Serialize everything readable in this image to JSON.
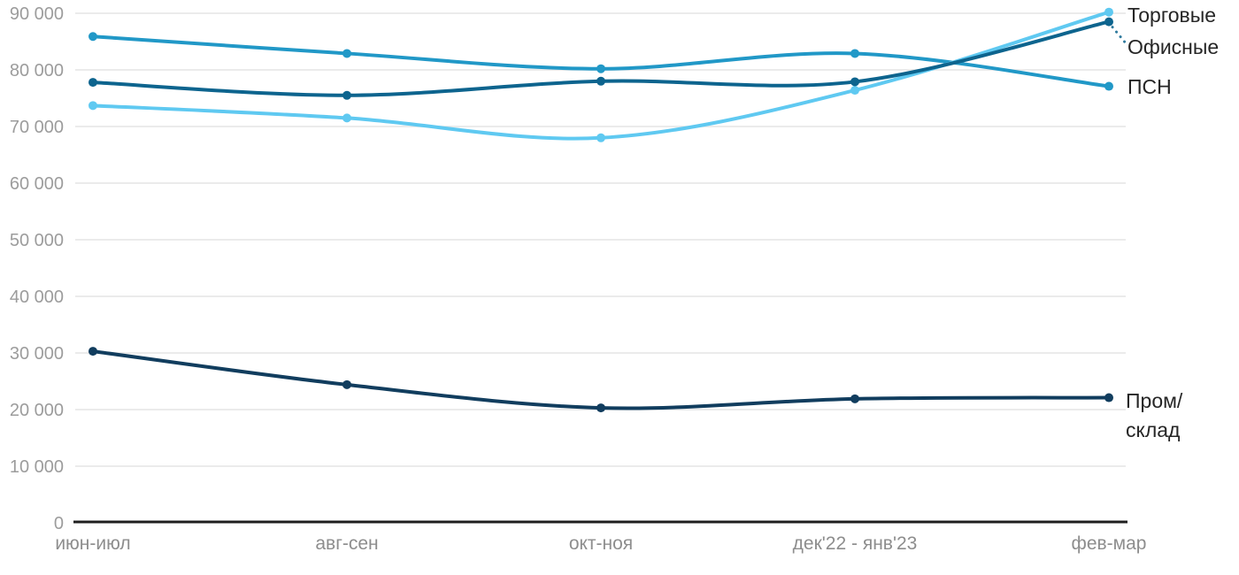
{
  "chart_data": {
    "type": "line",
    "title": "",
    "x_labels": [
      "июн-июл",
      "авг-сен",
      "окт-ноя",
      "дек'22 - янв'23",
      "фев-мар"
    ],
    "y_ticks": [
      {
        "value": 0,
        "label": "0"
      },
      {
        "value": 10000,
        "label": "10 000"
      },
      {
        "value": 20000,
        "label": "20 000"
      },
      {
        "value": 30000,
        "label": "30 000"
      },
      {
        "value": 40000,
        "label": "40 000"
      },
      {
        "value": 50000,
        "label": "50 000"
      },
      {
        "value": 60000,
        "label": "60 000"
      },
      {
        "value": 70000,
        "label": "70 000"
      },
      {
        "value": 80000,
        "label": "80 000"
      },
      {
        "value": 90000,
        "label": "90 000"
      }
    ],
    "ylim": [
      0,
      90000
    ],
    "grid": "horizontal-only",
    "legend_position": "right-of-line-ends",
    "series": [
      {
        "id": "psn",
        "name": "ПСН",
        "color": "#2198c7",
        "values": [
          85900,
          82900,
          80200,
          82900,
          77100
        ]
      },
      {
        "id": "torgovye",
        "name": "Торговые",
        "color": "#5fc9f1",
        "values": [
          73700,
          71500,
          68000,
          76400,
          90200
        ]
      },
      {
        "id": "ofisnye",
        "name": "Офисные",
        "color": "#0d648e",
        "values": [
          77800,
          75500,
          78000,
          77900,
          88500
        ],
        "leader_line": true
      },
      {
        "id": "prom_sklad",
        "name": "Пром/склад",
        "color": "#113d5e",
        "values": [
          30300,
          24400,
          20300,
          21900,
          22100
        ]
      }
    ],
    "style": {
      "grid_color": "#e8e8e8",
      "axis_color": "#1f1f1f",
      "ytick_color": "#9c9c9c",
      "xtick_color": "#8d8d8d",
      "legend_text_color": "#262626",
      "background": "#ffffff"
    }
  }
}
